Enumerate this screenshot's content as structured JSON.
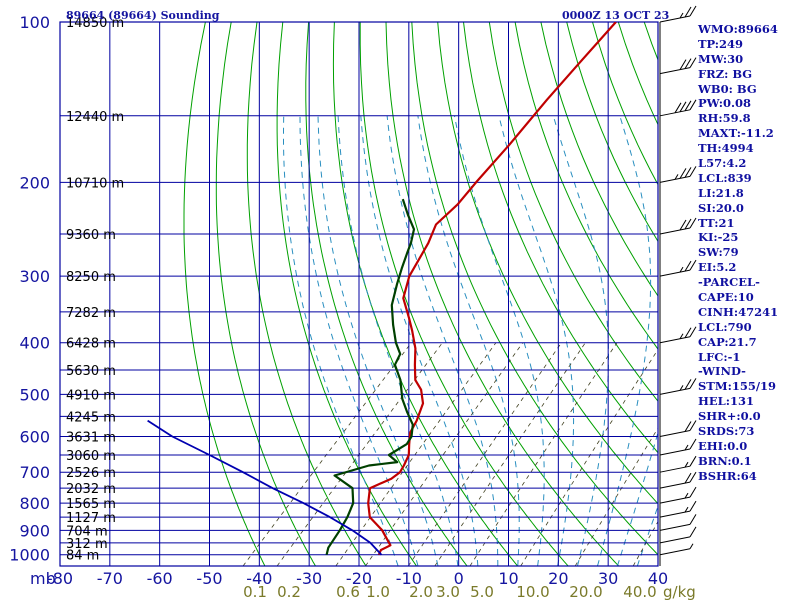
{
  "header": {
    "station_title": "89664 (89664) Sounding",
    "time_title": "0000Z 13 OCT 23"
  },
  "stats": [
    "WMO:89664",
    "TP:249",
    "MW:30",
    "FRZ: BG",
    "WB0: BG",
    "PW:0.08",
    "RH:59.8",
    "MAXT:-11.2",
    "TH:4994",
    "L57:4.2",
    "LCL:839",
    "LI:21.8",
    "SI:20.0",
    "TT:21",
    "KI:-25",
    "SW:79",
    "EI:5.2",
    "-PARCEL-",
    "CAPE:10",
    "CINH:47241",
    "LCL:790",
    "CAP:21.7",
    "LFC:-1",
    "-WIND-",
    "STM:155/19",
    "HEL:131",
    "SHR+:0.0",
    "SRDS:73",
    "EHI:0.0",
    "BRN:0.1",
    "BSHR:64"
  ],
  "chart_data": {
    "type": "line",
    "xlabel": "",
    "ylabel": "mb",
    "x_ticks": [
      "-80",
      "-70",
      "-60",
      "-50",
      "-40",
      "-30",
      "-20",
      "-10",
      "0",
      "10",
      "20",
      "30",
      "40"
    ],
    "x_range": [
      -80,
      40
    ],
    "pressure_ticks": [
      100,
      200,
      300,
      400,
      500,
      600,
      700,
      800,
      900,
      1000
    ],
    "pressure_range": [
      100,
      1050
    ],
    "log_pressure": true,
    "grid": true,
    "height_labels": [
      {
        "p": 100,
        "text": "14850 m"
      },
      {
        "p": 150,
        "text": "12440 m"
      },
      {
        "p": 200,
        "text": "10710 m"
      },
      {
        "p": 250,
        "text": "9360 m"
      },
      {
        "p": 300,
        "text": "8250 m"
      },
      {
        "p": 350,
        "text": "7282 m"
      },
      {
        "p": 400,
        "text": "6428 m"
      },
      {
        "p": 450,
        "text": "5630 m"
      },
      {
        "p": 500,
        "text": "4910 m"
      },
      {
        "p": 550,
        "text": "4245 m"
      },
      {
        "p": 600,
        "text": "3631 m"
      },
      {
        "p": 650,
        "text": "3060 m"
      },
      {
        "p": 700,
        "text": "2526 m"
      },
      {
        "p": 750,
        "text": "2032 m"
      },
      {
        "p": 800,
        "text": "1565 m"
      },
      {
        "p": 850,
        "text": "1127 m"
      },
      {
        "p": 900,
        "text": "704 m"
      },
      {
        "p": 950,
        "text": "312 m"
      },
      {
        "p": 1000,
        "text": "84 m"
      }
    ],
    "mixing_ratio_labels": [
      "0.1",
      "0.2",
      "0.6",
      "1.0",
      "2.0",
      "3.0",
      "5.0",
      "10.0",
      "20.0",
      "40.0"
    ],
    "mixing_ratio_unit": "g/kg",
    "series": [
      {
        "role": "temperature",
        "color": "#c00000",
        "points": [
          [
            -16.0,
            1000
          ],
          [
            -16.5,
            980
          ],
          [
            -15.5,
            960
          ],
          [
            -20.0,
            900
          ],
          [
            -25.0,
            850
          ],
          [
            -28.0,
            800
          ],
          [
            -30.5,
            750
          ],
          [
            -28.0,
            720
          ],
          [
            -27.5,
            700
          ],
          [
            -28.0,
            680
          ],
          [
            -29.0,
            650
          ],
          [
            -31.0,
            620
          ],
          [
            -33.0,
            590
          ],
          [
            -34.0,
            560
          ],
          [
            -36.0,
            520
          ],
          [
            -39.0,
            490
          ],
          [
            -42.0,
            470
          ],
          [
            -45.0,
            440
          ],
          [
            -48.0,
            410
          ],
          [
            -52.0,
            380
          ],
          [
            -55.0,
            360
          ],
          [
            -60.0,
            330
          ],
          [
            -63.0,
            300
          ],
          [
            -65.5,
            260
          ],
          [
            -67.5,
            240
          ],
          [
            -67.0,
            220
          ],
          [
            -67.5,
            200
          ],
          [
            -68.0,
            170
          ],
          [
            -69.0,
            140
          ],
          [
            -69.5,
            120
          ],
          [
            -70.0,
            100
          ]
        ]
      },
      {
        "role": "dewpoint",
        "color": "#004000",
        "points": [
          [
            -26.5,
            1000
          ],
          [
            -27.5,
            970
          ],
          [
            -28.5,
            900
          ],
          [
            -29.5,
            850
          ],
          [
            -31.0,
            800
          ],
          [
            -34.0,
            750
          ],
          [
            -40.0,
            710
          ],
          [
            -35.0,
            680
          ],
          [
            -30.0,
            670
          ],
          [
            -33.0,
            650
          ],
          [
            -31.5,
            620
          ],
          [
            -32.0,
            600
          ],
          [
            -34.0,
            570
          ],
          [
            -37.5,
            540
          ],
          [
            -41.0,
            510
          ],
          [
            -45.0,
            470
          ],
          [
            -49.0,
            440
          ],
          [
            -50.0,
            420
          ],
          [
            -53.0,
            400
          ],
          [
            -57.0,
            370
          ],
          [
            -61.0,
            340
          ],
          [
            -64.0,
            310
          ],
          [
            -66.0,
            290
          ],
          [
            -68.0,
            270
          ],
          [
            -69.0,
            260
          ],
          [
            -71.0,
            245
          ],
          [
            -75.0,
            230
          ],
          [
            -79.0,
            215
          ]
        ]
      },
      {
        "role": "parcel",
        "color": "#0000b0",
        "points": [
          [
            -15.5,
            1000
          ],
          [
            -20.0,
            950
          ],
          [
            -26.0,
            900
          ],
          [
            -33.0,
            850
          ],
          [
            -41.0,
            800
          ],
          [
            -50.0,
            750
          ],
          [
            -59.0,
            700
          ],
          [
            -69.0,
            650
          ],
          [
            -80.0,
            600
          ],
          [
            -88.0,
            560
          ]
        ]
      }
    ],
    "wind_barbs": [
      {
        "p": 1000,
        "speed_kt": 5
      },
      {
        "p": 950,
        "speed_kt": 10
      },
      {
        "p": 900,
        "speed_kt": 10
      },
      {
        "p": 850,
        "speed_kt": 15
      },
      {
        "p": 800,
        "speed_kt": 15
      },
      {
        "p": 750,
        "speed_kt": 20
      },
      {
        "p": 700,
        "speed_kt": 15
      },
      {
        "p": 650,
        "speed_kt": 15
      },
      {
        "p": 600,
        "speed_kt": 20
      },
      {
        "p": 500,
        "speed_kt": 25
      },
      {
        "p": 400,
        "speed_kt": 25
      },
      {
        "p": 300,
        "speed_kt": 25
      },
      {
        "p": 250,
        "speed_kt": 30
      },
      {
        "p": 200,
        "speed_kt": 35
      },
      {
        "p": 150,
        "speed_kt": 40
      },
      {
        "p": 125,
        "speed_kt": 30
      },
      {
        "p": 100,
        "speed_kt": 25
      }
    ],
    "colors": {
      "grid": "#0000a0",
      "dry_adiabat": "#00a000",
      "moist_adiabat": "#2a8fc0",
      "mixing_ratio": "#404020",
      "temperature": "#c00000",
      "dewpoint": "#004000",
      "parcel": "#0000b0",
      "barb": "#000000"
    }
  }
}
